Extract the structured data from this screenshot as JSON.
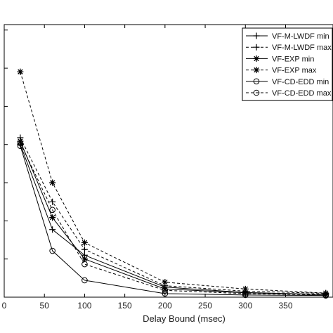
{
  "chart_data": {
    "type": "line",
    "xlabel": "Delay Bound (msec)",
    "ylabel": "",
    "xlim": [
      0,
      400
    ],
    "ylim": [
      0,
      1
    ],
    "x_ticks": [
      "0",
      "50",
      "100",
      "150",
      "200",
      "250",
      "300",
      "350"
    ],
    "x_tick_values": [
      0,
      50,
      100,
      150,
      200,
      250,
      300,
      350
    ],
    "y_tick_values": [
      0,
      0.14,
      0.28,
      0.42,
      0.56,
      0.7,
      0.84,
      0.98
    ],
    "grid": false,
    "legend_position": "top-right",
    "x": [
      20,
      60,
      100,
      200,
      300,
      400
    ],
    "series": [
      {
        "name": "VF-M-LWDF min",
        "line": "solid",
        "marker": "plus",
        "color": "#000000",
        "values": [
          0.56,
          0.248,
          0.154,
          0.037,
          0.017,
          0.01
        ]
      },
      {
        "name": "VF-M-LWDF max",
        "line": "dashed",
        "marker": "plus",
        "color": "#000000",
        "values": [
          0.585,
          0.35,
          0.175,
          0.042,
          0.022,
          0.014
        ]
      },
      {
        "name": "VF-EXP min",
        "line": "solid",
        "marker": "star",
        "color": "#000000",
        "values": [
          0.572,
          0.292,
          0.14,
          0.03,
          0.016,
          0.009
        ]
      },
      {
        "name": "VF-EXP max",
        "line": "dashed",
        "marker": "star",
        "color": "#000000",
        "values": [
          0.827,
          0.42,
          0.2,
          0.055,
          0.03,
          0.015
        ]
      },
      {
        "name": "VF-CD-EDD min",
        "line": "solid",
        "marker": "circle",
        "color": "#000000",
        "values": [
          0.555,
          0.17,
          0.062,
          0.013,
          0.008,
          0.006
        ]
      },
      {
        "name": "VF-CD-EDD max",
        "line": "dashed",
        "marker": "circle",
        "color": "#000000",
        "values": [
          0.565,
          0.32,
          0.121,
          0.025,
          0.013,
          0.008
        ]
      }
    ]
  }
}
